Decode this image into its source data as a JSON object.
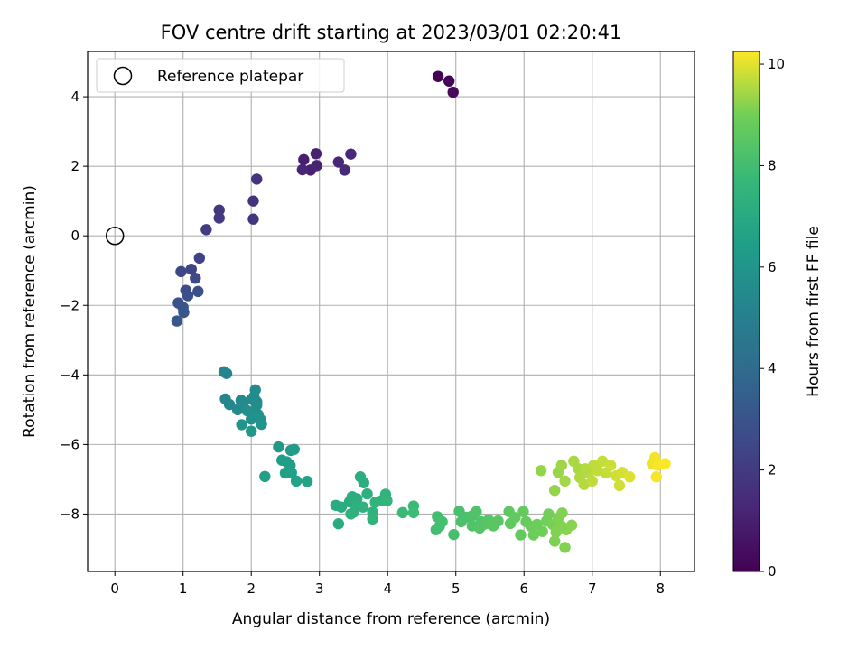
{
  "chart_data": {
    "type": "scatter",
    "title": "FOV centre drift starting at 2023/03/01 02:20:41",
    "xlabel": "Angular distance from reference (arcmin)",
    "ylabel": "Rotation from reference (arcmin)",
    "xlim": [
      -0.4,
      8.5
    ],
    "ylim": [
      -9.65,
      5.3
    ],
    "xticks": [
      0,
      1,
      2,
      3,
      4,
      5,
      6,
      7,
      8
    ],
    "yticks": [
      4,
      2,
      0,
      -2,
      -4,
      -6,
      -8
    ],
    "grid": true,
    "legend": {
      "position": "top-left",
      "entries": [
        "Reference platepar"
      ]
    },
    "reference_point": {
      "x": 0,
      "y": 0,
      "name": "Reference platepar"
    },
    "colorbar": {
      "label": "Hours from first FF file",
      "range": [
        0,
        10.25
      ],
      "ticks": [
        0,
        2,
        4,
        6,
        8,
        10
      ],
      "colormap": "viridis"
    },
    "points": [
      [
        4.74,
        4.58,
        0.05
      ],
      [
        4.9,
        4.45,
        0.15
      ],
      [
        4.96,
        4.13,
        0.3
      ],
      [
        2.77,
        2.19,
        1.0
      ],
      [
        2.87,
        1.89,
        1.05
      ],
      [
        2.95,
        2.36,
        1.1
      ],
      [
        2.96,
        2.02,
        1.15
      ],
      [
        2.75,
        1.9,
        1.2
      ],
      [
        3.28,
        2.12,
        1.25
      ],
      [
        3.46,
        2.35,
        1.3
      ],
      [
        3.37,
        1.89,
        1.35
      ],
      [
        2.08,
        1.63,
        1.7
      ],
      [
        2.03,
        1.0,
        1.75
      ],
      [
        2.03,
        0.48,
        1.8
      ],
      [
        1.53,
        0.74,
        1.9
      ],
      [
        1.53,
        0.51,
        1.95
      ],
      [
        1.34,
        0.18,
        2.05
      ],
      [
        1.24,
        -0.64,
        2.3
      ],
      [
        1.12,
        -0.96,
        2.4
      ],
      [
        0.97,
        -1.03,
        2.5
      ],
      [
        1.18,
        -1.22,
        2.6
      ],
      [
        1.04,
        -1.57,
        2.7
      ],
      [
        1.07,
        -1.72,
        2.8
      ],
      [
        1.22,
        -1.6,
        2.85
      ],
      [
        0.93,
        -1.93,
        2.9
      ],
      [
        1.0,
        -2.06,
        3.0
      ],
      [
        1.01,
        -2.2,
        3.1
      ],
      [
        0.91,
        -2.45,
        3.2
      ],
      [
        1.6,
        -3.91,
        5.2
      ],
      [
        1.64,
        -3.96,
        5.25
      ],
      [
        1.62,
        -4.69,
        5.3
      ],
      [
        1.68,
        -4.85,
        5.35
      ],
      [
        1.85,
        -4.73,
        5.4
      ],
      [
        1.8,
        -5.0,
        5.45
      ],
      [
        1.88,
        -4.88,
        5.5
      ],
      [
        2.0,
        -4.7,
        5.55
      ],
      [
        2.06,
        -4.43,
        5.6
      ],
      [
        2.04,
        -4.62,
        5.6
      ],
      [
        2.08,
        -4.77,
        5.65
      ],
      [
        1.94,
        -5.03,
        5.7
      ],
      [
        2.0,
        -5.27,
        5.75
      ],
      [
        2.05,
        -5.09,
        5.8
      ],
      [
        2.1,
        -5.14,
        5.85
      ],
      [
        2.14,
        -5.29,
        5.9
      ],
      [
        2.15,
        -5.42,
        5.95
      ],
      [
        1.86,
        -5.43,
        6.0
      ],
      [
        2.0,
        -5.62,
        6.05
      ],
      [
        2.08,
        -4.87,
        5.65
      ],
      [
        2.4,
        -6.07,
        6.2
      ],
      [
        2.58,
        -6.17,
        6.25
      ],
      [
        2.63,
        -6.14,
        6.3
      ],
      [
        2.45,
        -6.45,
        6.35
      ],
      [
        2.52,
        -6.5,
        6.4
      ],
      [
        2.57,
        -6.6,
        6.45
      ],
      [
        2.5,
        -6.82,
        6.5
      ],
      [
        2.59,
        -6.81,
        6.55
      ],
      [
        2.2,
        -6.92,
        6.5
      ],
      [
        2.66,
        -7.05,
        6.6
      ],
      [
        2.82,
        -7.06,
        6.65
      ],
      [
        3.24,
        -7.75,
        7.0
      ],
      [
        3.32,
        -7.8,
        7.05
      ],
      [
        3.44,
        -7.65,
        7.1
      ],
      [
        3.48,
        -7.5,
        7.15
      ],
      [
        3.55,
        -7.56,
        7.2
      ],
      [
        3.6,
        -6.93,
        7.2
      ],
      [
        3.65,
        -7.1,
        7.25
      ],
      [
        3.7,
        -7.42,
        7.3
      ],
      [
        3.56,
        -7.75,
        7.3
      ],
      [
        3.5,
        -7.95,
        7.35
      ],
      [
        3.64,
        -7.8,
        7.4
      ],
      [
        3.78,
        -7.95,
        7.45
      ],
      [
        3.78,
        -8.14,
        7.5
      ],
      [
        3.46,
        -8.0,
        7.35
      ],
      [
        3.28,
        -8.28,
        7.1
      ],
      [
        3.9,
        -7.62,
        7.45
      ],
      [
        3.97,
        -7.43,
        7.5
      ],
      [
        3.99,
        -7.62,
        7.55
      ],
      [
        3.82,
        -7.66,
        7.5
      ],
      [
        4.22,
        -7.96,
        7.8
      ],
      [
        4.38,
        -7.77,
        7.85
      ],
      [
        4.38,
        -7.96,
        7.9
      ],
      [
        4.73,
        -8.08,
        8.0
      ],
      [
        4.76,
        -8.35,
        8.05
      ],
      [
        4.71,
        -8.45,
        8.0
      ],
      [
        4.8,
        -8.22,
        8.05
      ],
      [
        4.97,
        -8.59,
        8.1
      ],
      [
        5.05,
        -7.92,
        8.15
      ],
      [
        5.08,
        -8.22,
        8.2
      ],
      [
        5.15,
        -8.09,
        8.2
      ],
      [
        5.24,
        -8.05,
        8.25
      ],
      [
        5.3,
        -7.93,
        8.3
      ],
      [
        5.24,
        -8.34,
        8.3
      ],
      [
        5.37,
        -8.22,
        8.35
      ],
      [
        5.42,
        -8.29,
        8.4
      ],
      [
        5.35,
        -8.4,
        8.4
      ],
      [
        5.48,
        -8.17,
        8.45
      ],
      [
        5.52,
        -8.3,
        8.5
      ],
      [
        5.62,
        -8.2,
        8.5
      ],
      [
        5.55,
        -8.34,
        8.5
      ],
      [
        5.78,
        -7.93,
        8.6
      ],
      [
        5.8,
        -8.27,
        8.65
      ],
      [
        5.87,
        -8.1,
        8.7
      ],
      [
        5.95,
        -8.6,
        8.75
      ],
      [
        5.99,
        -7.93,
        8.75
      ],
      [
        6.03,
        -8.22,
        8.8
      ],
      [
        6.1,
        -8.35,
        8.85
      ],
      [
        6.14,
        -8.6,
        8.9
      ],
      [
        6.19,
        -8.3,
        8.9
      ],
      [
        6.27,
        -8.5,
        8.95
      ],
      [
        6.33,
        -8.2,
        9.0
      ],
      [
        6.36,
        -8.0,
        9.0
      ],
      [
        6.42,
        -8.3,
        9.05
      ],
      [
        6.45,
        -8.78,
        9.1
      ],
      [
        6.5,
        -8.12,
        9.1
      ],
      [
        6.56,
        -7.97,
        9.15
      ],
      [
        6.6,
        -8.96,
        9.15
      ],
      [
        6.62,
        -8.45,
        9.2
      ],
      [
        6.7,
        -8.32,
        9.2
      ],
      [
        6.55,
        -8.35,
        9.15
      ],
      [
        6.47,
        -8.52,
        9.15
      ],
      [
        6.25,
        -6.75,
        9.3
      ],
      [
        6.45,
        -7.32,
        9.3
      ],
      [
        6.5,
        -6.8,
        9.35
      ],
      [
        6.55,
        -6.6,
        9.4
      ],
      [
        6.6,
        -7.05,
        9.45
      ],
      [
        6.73,
        -6.48,
        9.5
      ],
      [
        6.8,
        -6.7,
        9.5
      ],
      [
        6.82,
        -6.95,
        9.55
      ],
      [
        6.88,
        -7.15,
        9.6
      ],
      [
        6.95,
        -6.82,
        9.65
      ],
      [
        7.02,
        -6.6,
        9.7
      ],
      [
        7.08,
        -6.75,
        9.7
      ],
      [
        7.15,
        -6.48,
        9.75
      ],
      [
        7.2,
        -6.82,
        9.75
      ],
      [
        7.27,
        -6.6,
        9.8
      ],
      [
        7.35,
        -6.9,
        9.85
      ],
      [
        7.4,
        -7.18,
        9.85
      ],
      [
        7.44,
        -6.8,
        9.9
      ],
      [
        7.55,
        -6.93,
        9.95
      ],
      [
        7.0,
        -7.05,
        9.7
      ],
      [
        6.9,
        -6.7,
        9.6
      ],
      [
        7.88,
        -6.55,
        10.1
      ],
      [
        7.92,
        -6.38,
        10.15
      ],
      [
        7.96,
        -6.6,
        10.2
      ],
      [
        8.07,
        -6.55,
        10.25
      ],
      [
        7.94,
        -6.93,
        10.2
      ]
    ]
  }
}
